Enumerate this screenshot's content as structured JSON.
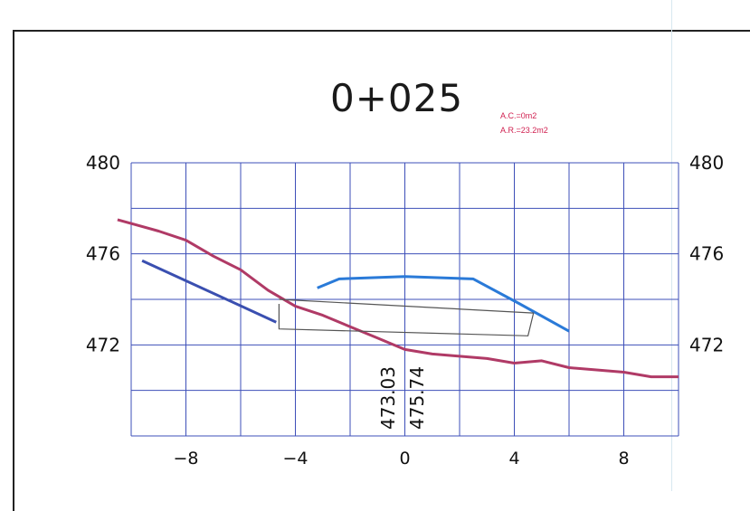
{
  "section": {
    "station": "0+025",
    "area_cut": "A.C.=0m2",
    "area_fill": "A.R.=23.2m2"
  },
  "elevations": {
    "left_value": "473.03",
    "right_value": "475.74"
  },
  "chart_data": {
    "type": "line",
    "xlim": [
      -10,
      10
    ],
    "ylim": [
      468,
      480
    ],
    "x_ticks": [
      -8,
      -4,
      0,
      4,
      8
    ],
    "x_tick_labels": [
      "−8",
      "−4",
      "0",
      "4",
      "8"
    ],
    "y_ticks": [
      480,
      476,
      472
    ],
    "y_tick_labels": [
      "480",
      "476",
      "472"
    ],
    "grid": true,
    "series": [
      {
        "color": "#b03a66",
        "points": [
          [
            -10.5,
            477.5
          ],
          [
            -9,
            477.0
          ],
          [
            -8,
            476.6
          ],
          [
            -7,
            475.9
          ],
          [
            -6,
            475.3
          ],
          [
            -5,
            474.4
          ],
          [
            -4,
            473.7
          ],
          [
            -3,
            473.3
          ],
          [
            -2,
            472.8
          ],
          [
            -1,
            472.3
          ],
          [
            0,
            471.8
          ],
          [
            1,
            471.6
          ],
          [
            2,
            471.5
          ],
          [
            3,
            471.4
          ],
          [
            4,
            471.2
          ],
          [
            5,
            471.3
          ],
          [
            6,
            471.0
          ],
          [
            7,
            470.9
          ],
          [
            8,
            470.8
          ],
          [
            9,
            470.6
          ],
          [
            10,
            470.6
          ]
        ]
      },
      {
        "color": "#3a4fb0",
        "points": [
          [
            -9.6,
            475.7
          ],
          [
            -4.7,
            473.0
          ]
        ]
      },
      {
        "color": "#2a7ad8",
        "points": [
          [
            -3.2,
            474.5
          ],
          [
            -2.4,
            474.9
          ],
          [
            0,
            475.0
          ],
          [
            2.5,
            474.9
          ],
          [
            4.2,
            473.8
          ],
          [
            6,
            472.6
          ]
        ]
      },
      {
        "color": "#555555",
        "points": [
          [
            -4.6,
            473.8
          ],
          [
            -4.6,
            472.7
          ],
          [
            4.5,
            472.4
          ],
          [
            4.7,
            473.4
          ],
          [
            -4.6,
            474.0
          ]
        ]
      }
    ]
  }
}
